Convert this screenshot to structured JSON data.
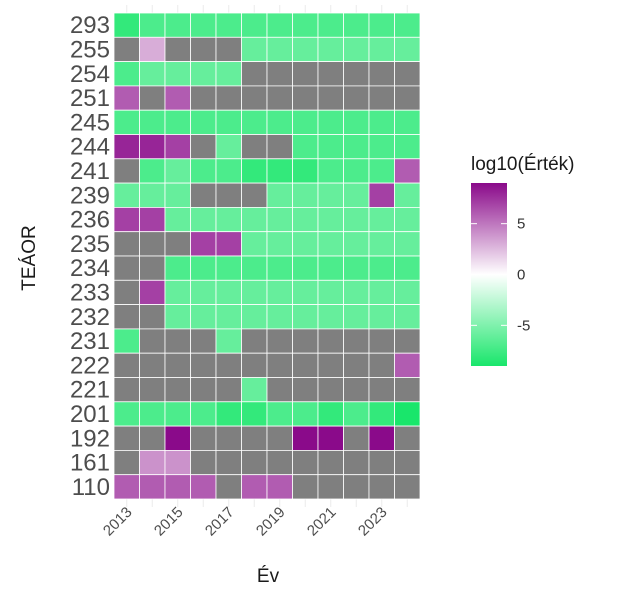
{
  "chart_data": {
    "type": "heatmap",
    "title": "",
    "xlabel": "Év",
    "ylabel": "TEÁOR",
    "legend_title": "log10(Érték)",
    "legend_ticks": [
      5,
      0,
      -5
    ],
    "legend_range": [
      -9,
      9
    ],
    "legend_placement": "right",
    "x": [
      2013,
      2014,
      2015,
      2016,
      2017,
      2018,
      2019,
      2020,
      2021,
      2022,
      2023,
      2024
    ],
    "x_tick_labels": [
      "2013",
      "2015",
      "2017",
      "2019",
      "2021",
      "2023"
    ],
    "y": [
      "293",
      "255",
      "254",
      "251",
      "245",
      "244",
      "241",
      "239",
      "236",
      "235",
      "234",
      "233",
      "232",
      "231",
      "222",
      "221",
      "201",
      "192",
      "161",
      "110"
    ],
    "missing_color": "#7f7f7f",
    "colors": {
      "low": "#19e66b",
      "mid": "#ffffff",
      "high": "#8a0a8a"
    },
    "z": [
      [
        -8,
        -7,
        -7,
        -7,
        -7,
        -7,
        -7,
        -7,
        -7,
        -7,
        -7,
        -7
      ],
      [
        null,
        3,
        null,
        null,
        null,
        -6,
        -6,
        -6,
        -6,
        -6,
        -6,
        -6
      ],
      [
        -7,
        -6,
        -6,
        -6,
        -6,
        null,
        null,
        null,
        null,
        null,
        null,
        null
      ],
      [
        6,
        null,
        6,
        null,
        null,
        null,
        null,
        null,
        null,
        null,
        null,
        null
      ],
      [
        -7,
        -7,
        -7,
        -7,
        -7,
        -7,
        -7,
        -7,
        -7,
        -7,
        -7,
        -7
      ],
      [
        8,
        8,
        7,
        null,
        -6,
        null,
        null,
        -7,
        -7,
        -7,
        -7,
        -7
      ],
      [
        null,
        -7,
        -6,
        -7,
        -7,
        -8,
        -8,
        -8,
        -7,
        -7,
        -7,
        6
      ],
      [
        -6,
        -6,
        -6,
        null,
        null,
        null,
        -6,
        -6,
        -6,
        -6,
        7,
        -6
      ],
      [
        7,
        7,
        -6,
        -6,
        -6,
        -6,
        -6,
        -6,
        -6,
        -6,
        -6,
        -6
      ],
      [
        null,
        null,
        null,
        7,
        7,
        -6,
        -6,
        -6,
        -6,
        -6,
        -6,
        -6
      ],
      [
        null,
        null,
        -7,
        -7,
        -7,
        -7,
        -7,
        -7,
        -7,
        -7,
        -7,
        -7
      ],
      [
        null,
        7,
        -6,
        -6,
        -6,
        -6,
        -6,
        -6,
        -6,
        -6,
        -6,
        -6
      ],
      [
        null,
        null,
        -6,
        -6,
        -6,
        -6,
        -6,
        -6,
        -6,
        -6,
        -6,
        -6
      ],
      [
        -7,
        null,
        null,
        null,
        -6,
        null,
        null,
        null,
        null,
        null,
        null,
        null
      ],
      [
        null,
        null,
        null,
        null,
        null,
        null,
        null,
        null,
        null,
        null,
        null,
        6
      ],
      [
        null,
        null,
        null,
        null,
        null,
        -6,
        null,
        null,
        null,
        null,
        null,
        null
      ],
      [
        -7,
        -7,
        -7,
        -7,
        -8,
        -8,
        -7,
        -7,
        -8,
        -7,
        -8,
        -9
      ],
      [
        null,
        null,
        9,
        null,
        null,
        null,
        null,
        9,
        9,
        null,
        9,
        null
      ],
      [
        null,
        4,
        4,
        null,
        null,
        null,
        null,
        null,
        null,
        null,
        null,
        null
      ],
      [
        6,
        6,
        6,
        6,
        null,
        6,
        6,
        null,
        null,
        null,
        null,
        null
      ]
    ]
  }
}
